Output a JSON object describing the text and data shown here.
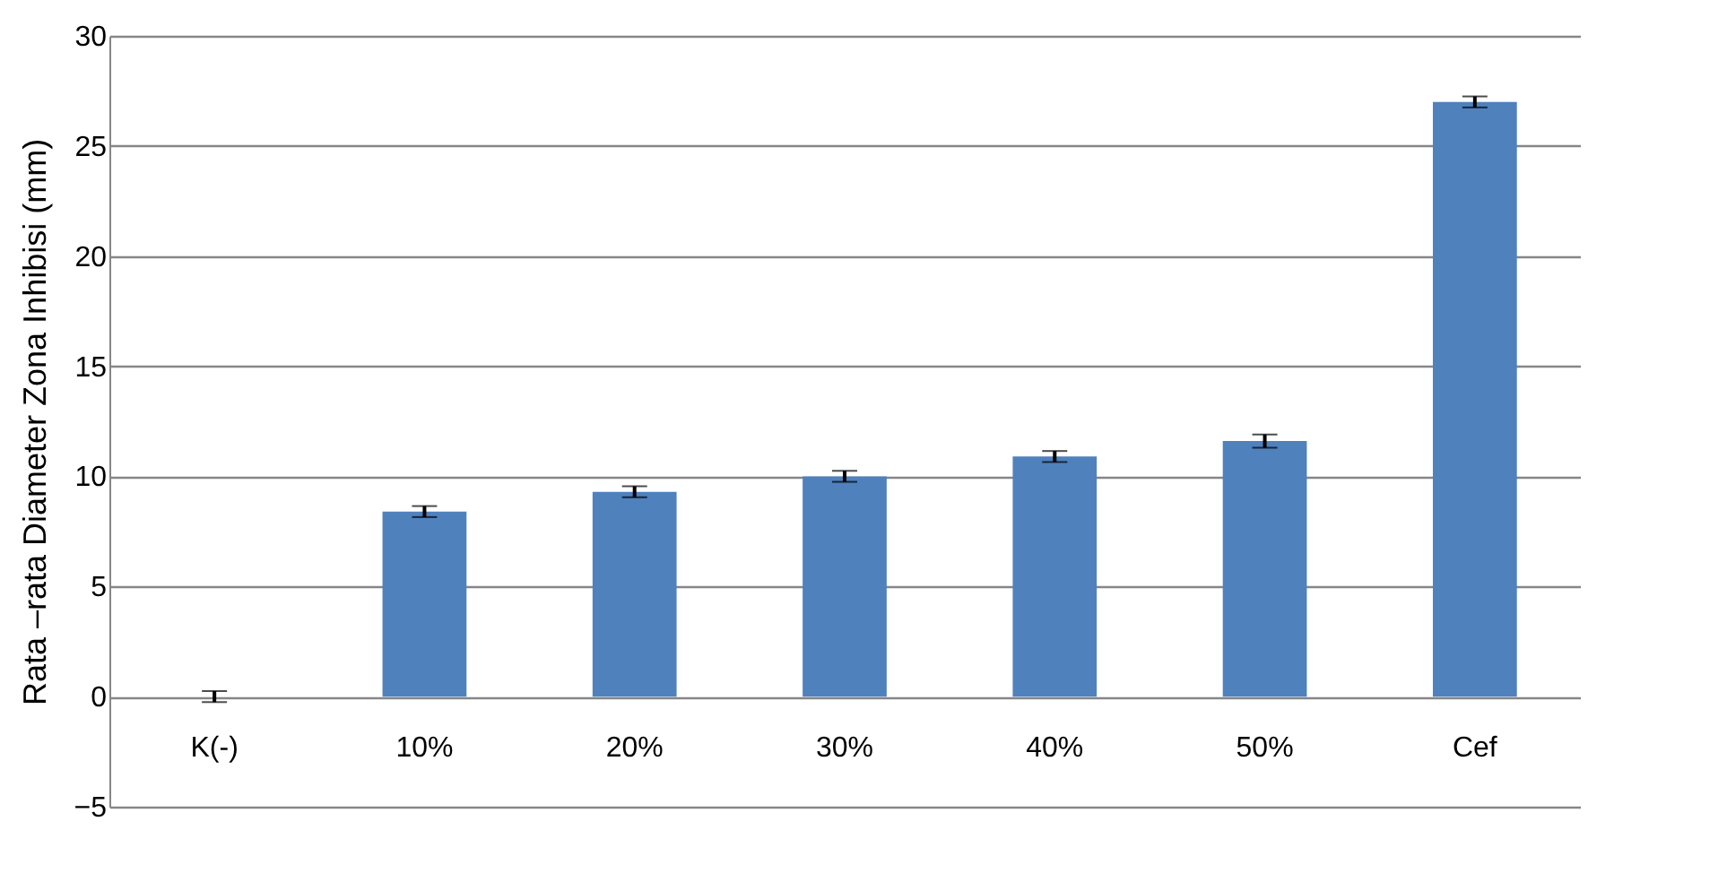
{
  "chart_data": {
    "type": "bar",
    "ylabel": "Rata –rata Diameter Zona Inhibisi (mm)",
    "categories": [
      "K(-)",
      "10%",
      "20%",
      "30%",
      "40%",
      "50%",
      "Cef"
    ],
    "values": [
      0,
      8.4,
      9.3,
      10.0,
      10.9,
      11.6,
      27.0
    ],
    "errors": [
      0.25,
      0.25,
      0.25,
      0.25,
      0.25,
      0.3,
      0.25
    ],
    "color": "#4f81bd",
    "ylim": [
      -5,
      30
    ],
    "yticks": [
      -5,
      0,
      5,
      10,
      15,
      20,
      25,
      30
    ],
    "grid": "y"
  }
}
